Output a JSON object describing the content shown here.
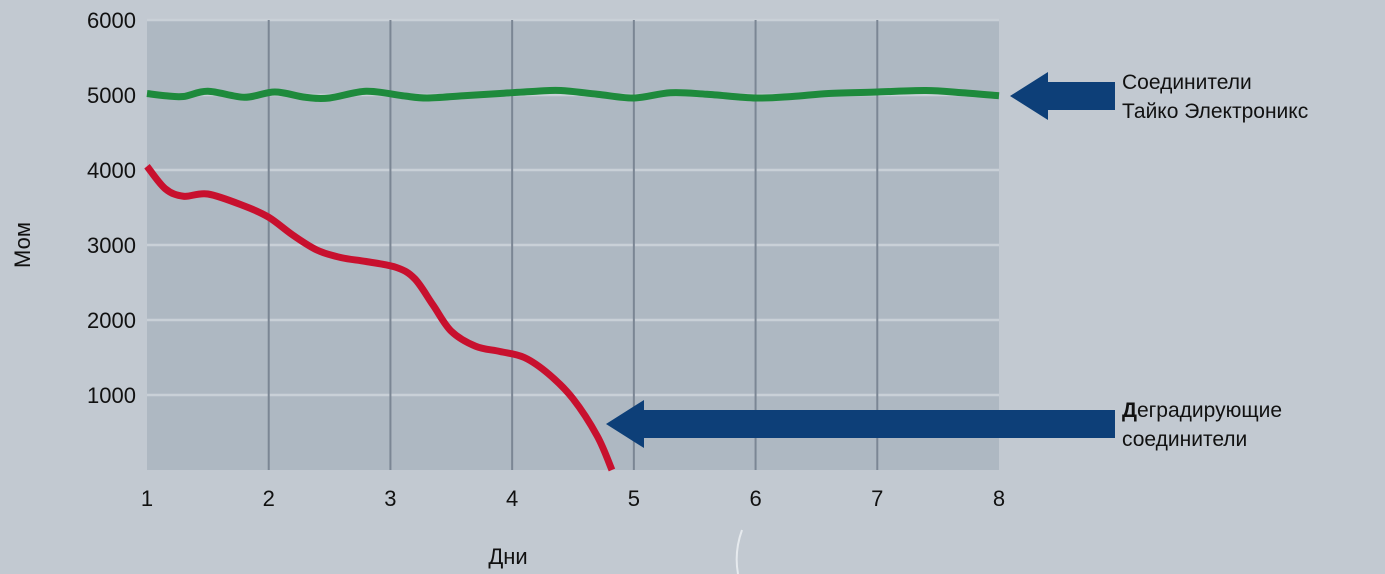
{
  "chart_data": {
    "type": "line",
    "xlabel": "Дни",
    "ylabel": "Мом",
    "xlim": [
      1,
      8
    ],
    "ylim": [
      0,
      6000
    ],
    "x_ticks": [
      "1",
      "2",
      "3",
      "4",
      "5",
      "6",
      "7",
      "8"
    ],
    "y_ticks": [
      "1000",
      "2000",
      "3000",
      "4000",
      "5000",
      "6000"
    ],
    "grid": {
      "vertical": true,
      "horizontal": true
    },
    "series": [
      {
        "color": "#1e8a3c",
        "x": [
          1,
          1.15,
          1.3,
          1.5,
          1.8,
          2.05,
          2.3,
          2.5,
          2.8,
          3.1,
          3.3,
          3.6,
          3.9,
          4.2,
          4.4,
          4.7,
          5,
          5.3,
          5.6,
          6,
          6.3,
          6.6,
          7,
          7.4,
          7.7,
          8
        ],
        "y": [
          5020,
          4990,
          4980,
          5050,
          4970,
          5040,
          4970,
          4960,
          5050,
          4990,
          4960,
          4990,
          5020,
          5050,
          5060,
          5010,
          4960,
          5030,
          5010,
          4960,
          4980,
          5020,
          5040,
          5060,
          5030,
          4990
        ]
      },
      {
        "color": "#c8102e",
        "x": [
          1,
          1.15,
          1.3,
          1.5,
          1.8,
          2,
          2.2,
          2.4,
          2.6,
          2.8,
          3.05,
          3.2,
          3.35,
          3.5,
          3.7,
          3.9,
          4.1,
          4.3,
          4.5,
          4.7,
          4.82
        ],
        "y": [
          4050,
          3750,
          3650,
          3680,
          3520,
          3370,
          3130,
          2930,
          2830,
          2780,
          2700,
          2550,
          2200,
          1850,
          1650,
          1580,
          1500,
          1280,
          950,
          450,
          0
        ]
      }
    ],
    "annotations": [
      {
        "lines": [
          "Соединители",
          "Тайко Электроникс"
        ],
        "color": "#0d3f78"
      },
      {
        "first_letter": "Д",
        "first_line_rest": "еградирующие",
        "second_line": "соединители",
        "color": "#0d3f78"
      }
    ]
  }
}
